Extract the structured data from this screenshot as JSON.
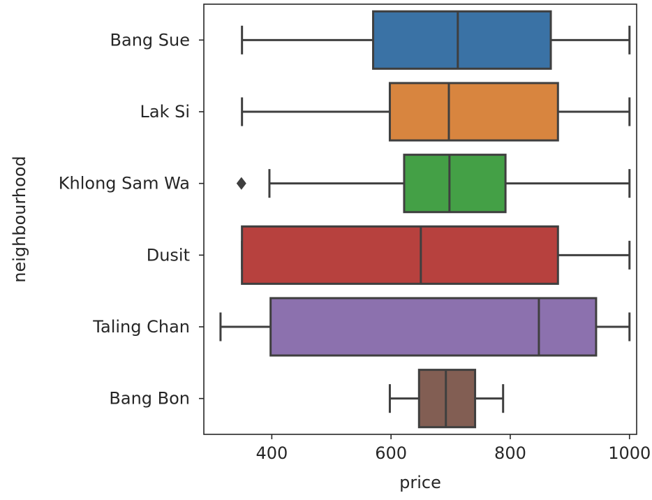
{
  "chart_data": {
    "type": "boxplot",
    "orientation": "horizontal",
    "xlabel": "price",
    "ylabel": "neighbourhood",
    "xlim": [
      286,
      1012
    ],
    "xticks": [
      400,
      600,
      800,
      1000
    ],
    "grid": false,
    "legend": "none",
    "categories": [
      "Bang Sue",
      "Lak Si",
      "Khlong Sam Wa",
      "Dusit",
      "Taling Chan",
      "Bang Bon"
    ],
    "series": [
      {
        "category": "Bang Sue",
        "color": "#3a72a5",
        "whisker_low": 350,
        "q1": 570,
        "median": 712,
        "q3": 868,
        "whisker_high": 1000,
        "outliers": []
      },
      {
        "category": "Lak Si",
        "color": "#d8853f",
        "whisker_low": 350,
        "q1": 598,
        "median": 697,
        "q3": 880,
        "whisker_high": 1000,
        "outliers": []
      },
      {
        "category": "Khlong Sam Wa",
        "color": "#44a046",
        "whisker_low": 396,
        "q1": 622,
        "median": 698,
        "q3": 792,
        "whisker_high": 1000,
        "outliers": [
          349
        ]
      },
      {
        "category": "Dusit",
        "color": "#b7413e",
        "whisker_low": 350,
        "q1": 350,
        "median": 650,
        "q3": 880,
        "whisker_high": 1000,
        "outliers": []
      },
      {
        "category": "Taling Chan",
        "color": "#8c71ae",
        "whisker_low": 314,
        "q1": 398,
        "median": 848,
        "q3": 944,
        "whisker_high": 1000,
        "outliers": []
      },
      {
        "category": "Bang Bon",
        "color": "#825e53",
        "whisker_low": 598,
        "q1": 647,
        "median": 692,
        "q3": 741,
        "whisker_high": 788,
        "outliers": []
      }
    ]
  }
}
